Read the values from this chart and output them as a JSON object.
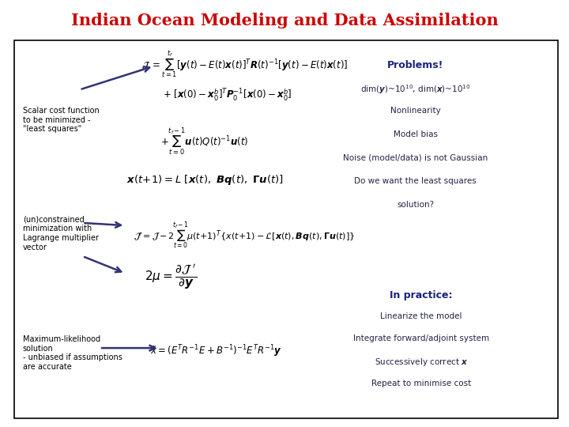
{
  "title": "Indian Ocean Modeling and Data Assimilation",
  "title_color": "#cc0000",
  "title_fontsize": 15,
  "bg_color": "#ffffff",
  "box_color": "#000000",
  "problems_title": "Problems!",
  "problems_title_color": "#1a237e",
  "problems_lines": [
    "dim(y)~10$^{10}$, dim(x)~10$^{10}$",
    "Nonlinearity",
    "Model bias",
    "Noise (model/data) is not Gaussian",
    "Do we want the least squares",
    "solution?"
  ],
  "problems_color": "#222244",
  "in_practice_title": "In practice:",
  "in_practice_title_color": "#1a237e",
  "in_practice_lines": [
    "Linearize the model",
    "Integrate forward/adjoint system",
    "Successively correct x",
    "Repeat to minimise cost"
  ],
  "in_practice_color": "#222244",
  "scalar_text": "Scalar cost function\nto be minimized -\n\"least squares\"",
  "unconstrained_text": "(un)constrained\nminimization with\nLagrange multiplier\nvector",
  "ml_text": "Maximum-likelihood\nsolution\n- unbiased if assumptions\nare accurate",
  "annotation_color": "#000000",
  "arrow_color": "#333377"
}
